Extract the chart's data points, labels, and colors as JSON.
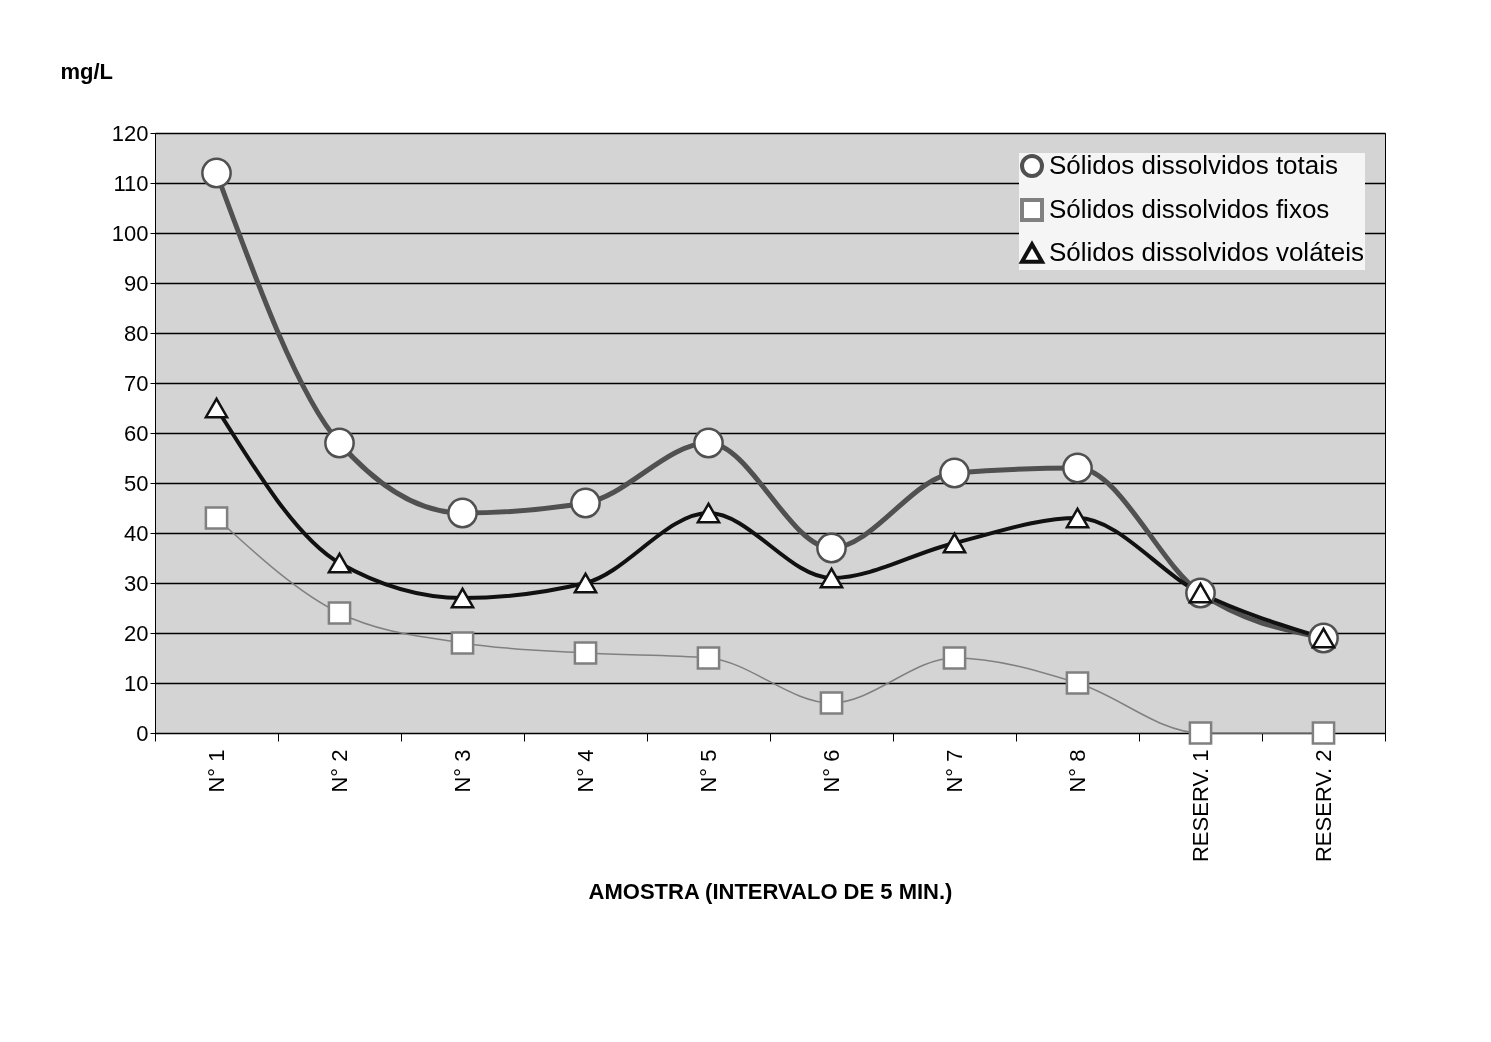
{
  "chart_data": {
    "type": "line",
    "xlabel": "AMOSTRA (INTERVALO DE 5 MIN.)",
    "ylabel": "mg/L",
    "categories": [
      "N° 1",
      "N° 2",
      "N° 3",
      "N° 4",
      "N° 5",
      "N° 6",
      "N° 7",
      "N° 8",
      "RESERV. 1",
      "RESERV. 2"
    ],
    "series": [
      {
        "name": "Sólidos dissolvidos totais",
        "color": "#505050",
        "marker": "circle",
        "values": [
          112,
          58,
          44,
          46,
          58,
          37,
          52,
          53,
          28,
          19
        ]
      },
      {
        "name": "Sólidos dissolvidos fixos",
        "color": "#808080",
        "marker": "square",
        "values": [
          43,
          24,
          18,
          16,
          15,
          6,
          15,
          10,
          0,
          0
        ]
      },
      {
        "name": "Sólidos dissolvidos voláteis",
        "color": "#111111",
        "marker": "triangle",
        "values": [
          65,
          34,
          27,
          30,
          44,
          31,
          38,
          43,
          28,
          19
        ]
      }
    ],
    "ylim": [
      0,
      120
    ],
    "yticks": [
      0,
      10,
      20,
      30,
      40,
      50,
      60,
      70,
      80,
      90,
      100,
      110,
      120
    ],
    "grid": "y",
    "legend": "top right"
  }
}
